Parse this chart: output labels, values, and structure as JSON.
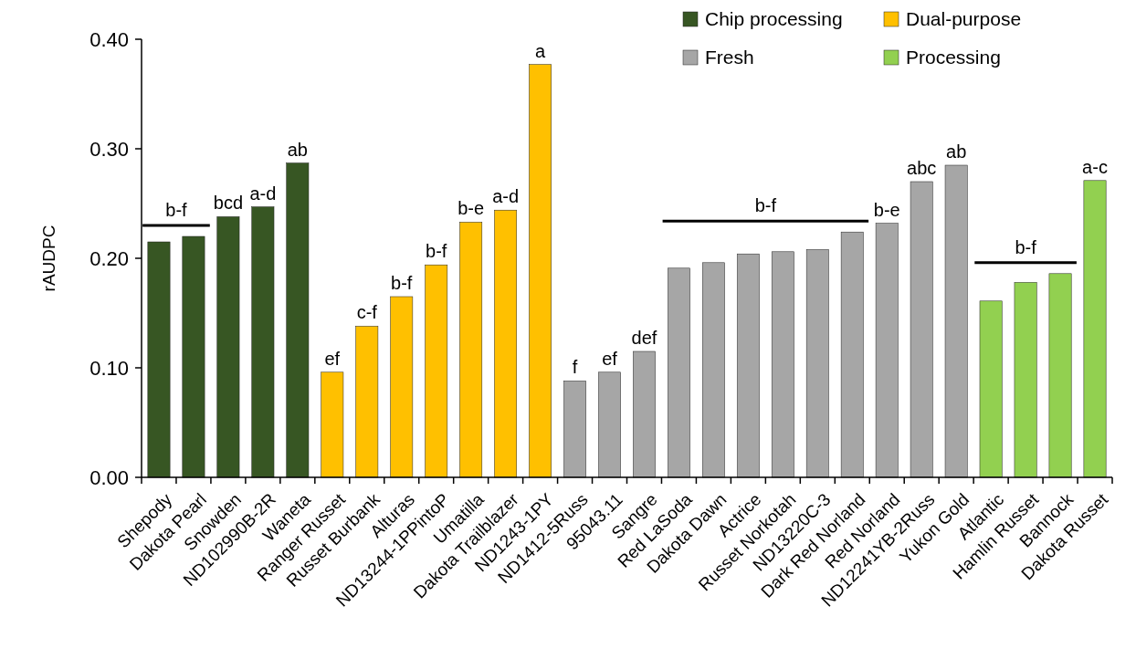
{
  "chart_data": {
    "type": "bar",
    "ylabel": "rAUDPC",
    "categories": [
      "Shepody",
      "Dakota Pearl",
      "Snowden",
      "ND102990B-2R",
      "Waneta",
      "Ranger Russet",
      "Russet Burbank",
      "Alturas",
      "ND13244-1PPintoP",
      "Umatilla",
      "Dakota Trailblazer",
      "ND1243-1PY",
      "ND1412-5Russ",
      "95043.11",
      "Sangre",
      "Red LaSoda",
      "Dakota Dawn",
      "Actrice",
      "Russet Norkotah",
      "ND13220C-3",
      "Dark Red Norland",
      "Red Norland",
      "ND12241YB-2Russ",
      "Yukon Gold",
      "Atlantic",
      "Hamlin Russet",
      "Bannock",
      "Dakota Russet"
    ],
    "series": [
      {
        "name": "Chip processing",
        "color": "#375623",
        "values": [
          0.215,
          0.22,
          0.238,
          0.247,
          0.287,
          null,
          null,
          null,
          null,
          null,
          null,
          null,
          null,
          null,
          null,
          null,
          null,
          null,
          null,
          null,
          null,
          null,
          null,
          null,
          null,
          null,
          null,
          null
        ],
        "value_labels": [
          null,
          null,
          "bcd",
          "a-d",
          "ab",
          null,
          null,
          null,
          null,
          null,
          null,
          null,
          null,
          null,
          null,
          null,
          null,
          null,
          null,
          null,
          null,
          null,
          null,
          null,
          null,
          null,
          null,
          null
        ]
      },
      {
        "name": "Dual-purpose",
        "color": "#ffc000",
        "values": [
          null,
          null,
          null,
          null,
          null,
          0.096,
          0.138,
          0.165,
          0.194,
          0.233,
          0.244,
          0.377,
          null,
          null,
          null,
          null,
          null,
          null,
          null,
          null,
          null,
          null,
          null,
          null,
          null,
          null,
          null,
          null
        ],
        "value_labels": [
          null,
          null,
          null,
          null,
          null,
          "ef",
          "c-f",
          "b-f",
          "b-f",
          "b-e",
          "a-d",
          "a",
          null,
          null,
          null,
          null,
          null,
          null,
          null,
          null,
          null,
          null,
          null,
          null,
          null,
          null,
          null,
          null
        ]
      },
      {
        "name": "Fresh",
        "color": "#a6a6a6",
        "values": [
          null,
          null,
          null,
          null,
          null,
          null,
          null,
          null,
          null,
          null,
          null,
          null,
          0.088,
          0.096,
          0.115,
          0.191,
          0.196,
          0.204,
          0.206,
          0.208,
          0.224,
          0.232,
          0.27,
          0.285,
          null,
          null,
          null,
          null
        ],
        "value_labels": [
          null,
          null,
          null,
          null,
          null,
          null,
          null,
          null,
          null,
          null,
          null,
          null,
          "f",
          "ef",
          "def",
          null,
          null,
          null,
          null,
          null,
          null,
          "b-e",
          "abc",
          "ab",
          null,
          null,
          null,
          null
        ]
      },
      {
        "name": "Processing",
        "color": "#92d050",
        "values": [
          null,
          null,
          null,
          null,
          null,
          null,
          null,
          null,
          null,
          null,
          null,
          null,
          null,
          null,
          null,
          null,
          null,
          null,
          null,
          null,
          null,
          null,
          null,
          null,
          0.161,
          0.178,
          0.186,
          0.271
        ],
        "value_labels": [
          null,
          null,
          null,
          null,
          null,
          null,
          null,
          null,
          null,
          null,
          null,
          null,
          null,
          null,
          null,
          null,
          null,
          null,
          null,
          null,
          null,
          null,
          null,
          null,
          null,
          null,
          null,
          "a-c"
        ]
      }
    ],
    "ylim": [
      0,
      0.4
    ],
    "yticks": [
      {
        "value": 0,
        "label": "0.00"
      },
      {
        "value": 0.1,
        "label": "0.10"
      },
      {
        "value": 0.2,
        "label": "0.20"
      },
      {
        "value": 0.3,
        "label": "0.30"
      },
      {
        "value": 0.4,
        "label": "0.40"
      }
    ],
    "legend": "top right",
    "annotations": [
      "b-f",
      "b-f",
      "b-f"
    ]
  }
}
